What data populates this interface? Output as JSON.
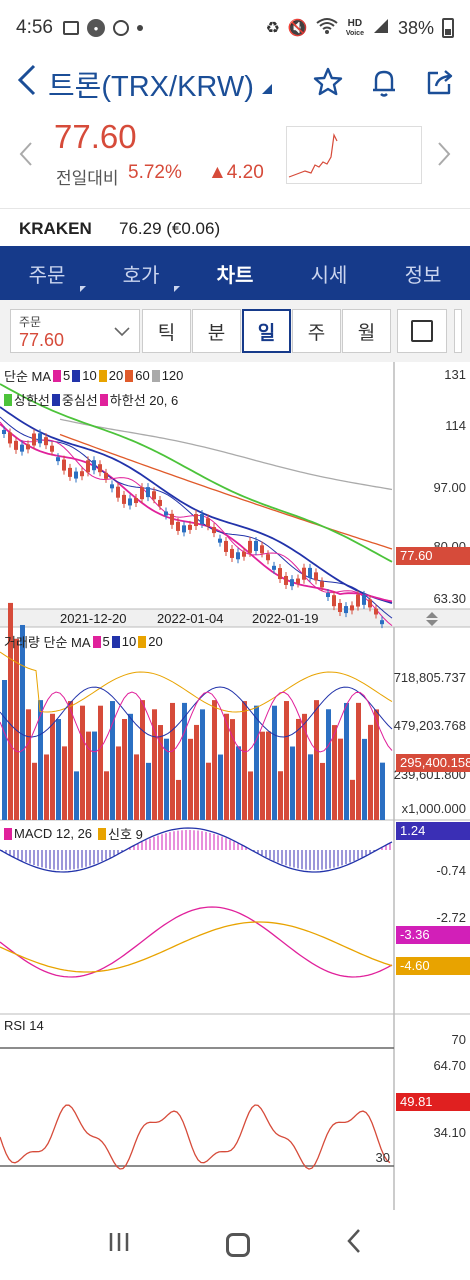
{
  "status": {
    "time": "4:56",
    "battery": "38%",
    "hd": "HD",
    "hd_sub": "Voice"
  },
  "header": {
    "title": "트론(TRX/KRW)"
  },
  "quote": {
    "price": "77.60",
    "change_label": "전일대비",
    "change_pct": "5.72%",
    "change_val": "▲4.20"
  },
  "exchange": {
    "name": "KRAKEN",
    "value": "76.29 (€0.06)"
  },
  "tabs": [
    "주문",
    "호가",
    "차트",
    "시세",
    "정보"
  ],
  "toolbar": {
    "dropdown_label": "주문",
    "dropdown_value": "77.60",
    "periods": [
      "틱",
      "분",
      "일",
      "주",
      "월"
    ],
    "active_period": "일"
  },
  "price_panel": {
    "legend_ma": "단순 MA",
    "ma_periods": [
      "5",
      "10",
      "20",
      "60",
      "120"
    ],
    "legend_bb": [
      "상한선",
      "중심선",
      "하한선 20, 6"
    ],
    "y_labels": [
      "131",
      "114",
      "97.00",
      "80.00",
      "63.30"
    ],
    "current_tag": "77.60"
  },
  "dates": [
    "2021-12-20",
    "2022-01-04",
    "2022-01-19"
  ],
  "volume_panel": {
    "legend": "거래량 단순 MA",
    "ma_periods": [
      "5",
      "10",
      "20"
    ],
    "y_labels": [
      "718,805.737",
      "479,203.768",
      "239,601.800",
      "x1,000.000"
    ],
    "current_tag": "295,400.158"
  },
  "macd_panel": {
    "legend": "MACD 12, 26",
    "signal": "신호 9",
    "y_labels": [
      "-0.74",
      "-2.72"
    ],
    "tags": [
      "1.24",
      "-3.36",
      "-4.60"
    ]
  },
  "rsi_panel": {
    "legend": "RSI 14",
    "level_high": "70",
    "level_low": "30",
    "y_labels": [
      "64.70",
      "34.10"
    ],
    "current_tag": "49.81"
  },
  "colors": {
    "up": "#d64b3a",
    "down": "#2b6fc2",
    "navy": "#163a8a",
    "ma5": "#e0219b",
    "ma10": "#2233aa",
    "ma20": "#e8a300",
    "ma60": "#e05a2a",
    "ma120": "#aaaaaa",
    "bb_upper": "#4cc33a"
  }
}
